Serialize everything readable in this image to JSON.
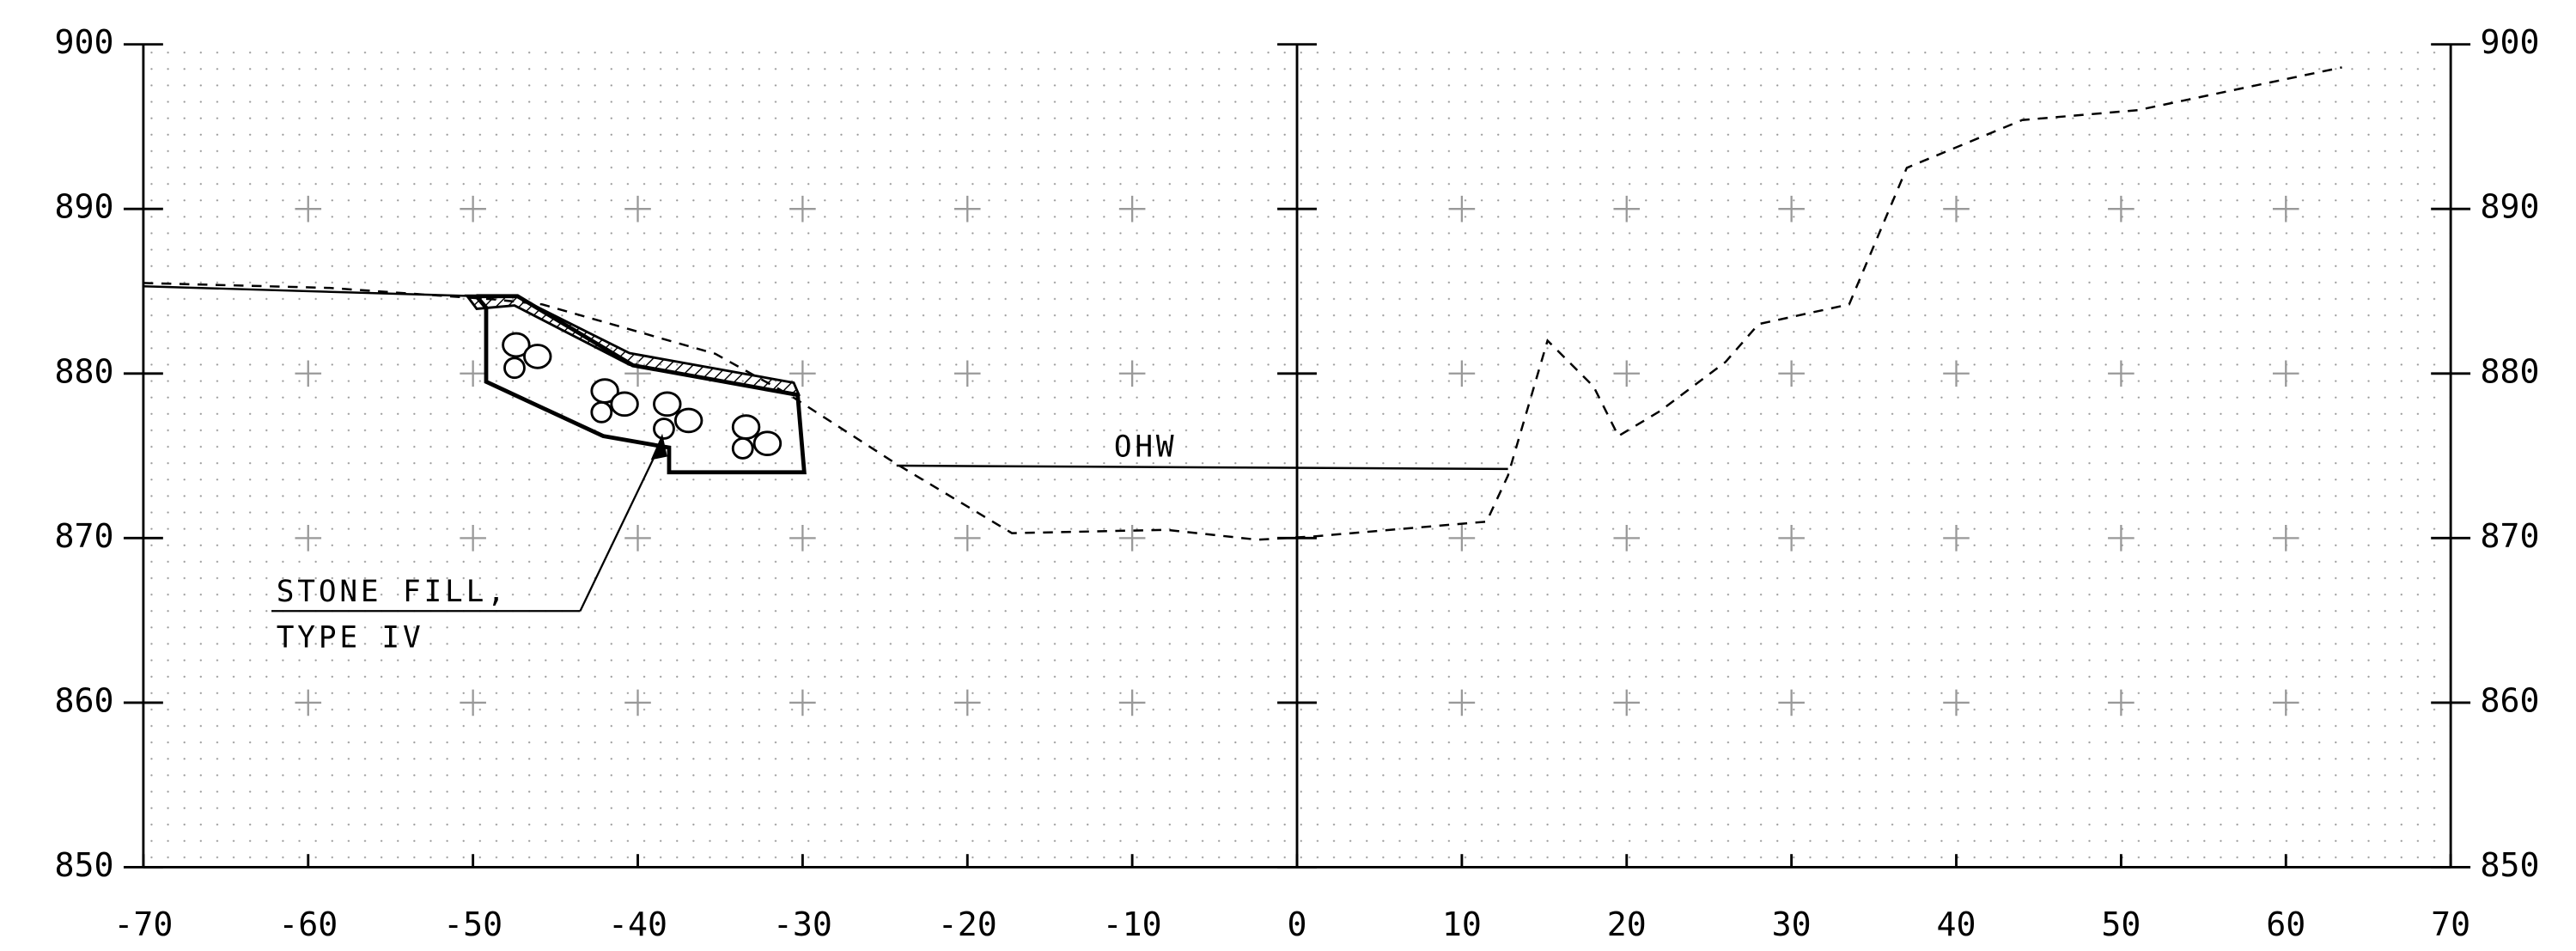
{
  "chart_data": {
    "type": "line",
    "xlim": [
      -70,
      70
    ],
    "xticks": [
      -70,
      -60,
      -50,
      -40,
      -30,
      -20,
      -10,
      0,
      10,
      20,
      30,
      40,
      50,
      60,
      70
    ],
    "ylim": [
      850,
      900
    ],
    "yticks": [
      850,
      860,
      870,
      880,
      890,
      900
    ],
    "y2lim": [
      850,
      900
    ],
    "y2ticks": [
      850,
      860,
      870,
      880,
      890,
      900
    ],
    "grid": true,
    "series": [
      {
        "color": "#000000",
        "style": "dashed",
        "x": [
          -70,
          -58.7,
          -48.7,
          -45.8,
          -35.3,
          -30.8,
          -24.3,
          -17.3,
          -7.9,
          -2.4,
          1,
          11.5,
          12.8,
          15.2,
          18.0,
          19.5,
          22,
          26,
          28,
          33.5,
          37,
          44,
          51,
          63.4
        ],
        "values": [
          885.5,
          885.2,
          884.5,
          884.2,
          881.2,
          878.7,
          874.5,
          870.3,
          870.5,
          869.9,
          870.1,
          871.0,
          873.8,
          882.0,
          879.2,
          876.2,
          877.7,
          880.7,
          883.0,
          884.2,
          892.5,
          895.4,
          896.0,
          898.6
        ]
      },
      {
        "color": "#000000",
        "style": "solid",
        "x": [
          -70,
          -49.8
        ],
        "values": [
          885.3,
          884.7
        ]
      },
      {
        "color": "#000000",
        "style": "solid",
        "x": [
          -24.3,
          12.8
        ],
        "values": [
          874.4,
          874.2
        ]
      },
      {
        "color": "#000000",
        "style": "thick",
        "x": [
          -49.8,
          -47.3,
          -40.3,
          -30.3,
          -29.9,
          -38.1,
          -38.1,
          -42.1,
          -49.2,
          -49.2,
          -49.8
        ],
        "values": [
          884.7,
          884.7,
          880.5,
          878.7,
          874.0,
          874.0,
          875.5,
          876.2,
          879.5,
          884.0,
          884.7
        ]
      }
    ],
    "annotations": [
      "OHW",
      "STONE FILL,",
      "TYPE IV"
    ]
  }
}
